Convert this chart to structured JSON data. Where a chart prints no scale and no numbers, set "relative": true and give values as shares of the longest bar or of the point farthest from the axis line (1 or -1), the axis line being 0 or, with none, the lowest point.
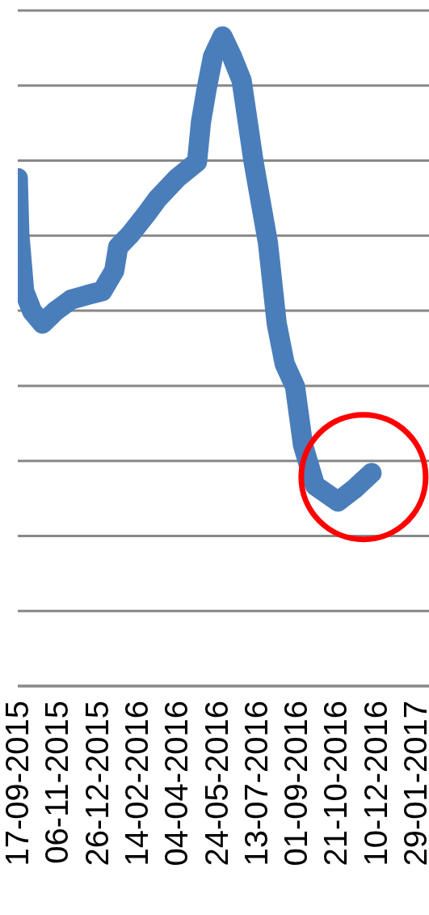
{
  "chart_data": {
    "type": "line",
    "relative": true,
    "grid": "y",
    "x": [
      "2015-09-17",
      "2015-09-19",
      "2015-09-25",
      "2015-10-05",
      "2015-10-18",
      "2015-11-03",
      "2015-11-23",
      "2015-12-13",
      "2016-01-01",
      "2016-01-16",
      "2016-01-21",
      "2016-02-05",
      "2016-02-25",
      "2016-03-11",
      "2016-04-04",
      "2016-04-29",
      "2016-05-04",
      "2016-05-11",
      "2016-05-19",
      "2016-05-31",
      "2016-06-12",
      "2016-06-24",
      "2016-07-09",
      "2016-07-27",
      "2016-08-07",
      "2016-08-17",
      "2016-08-30",
      "2016-09-09",
      "2016-09-24",
      "2016-10-23",
      "2016-11-12",
      "2016-12-04"
    ],
    "xlim": [
      "2015-09-17",
      "2017-02-05"
    ],
    "xticks": [
      {
        "value": "2015-09-17",
        "label": "17-09-2015"
      },
      {
        "value": "2015-11-06",
        "label": "06-11-2015"
      },
      {
        "value": "2015-12-26",
        "label": "26-12-2015"
      },
      {
        "value": "2016-02-14",
        "label": "14-02-2016"
      },
      {
        "value": "2016-04-04",
        "label": "04-04-2016"
      },
      {
        "value": "2016-05-24",
        "label": "24-05-2016"
      },
      {
        "value": "2016-07-13",
        "label": "13-07-2016"
      },
      {
        "value": "2016-09-01",
        "label": "01-09-2016"
      },
      {
        "value": "2016-10-21",
        "label": "21-10-2016"
      },
      {
        "value": "2016-12-10",
        "label": "10-12-2016"
      },
      {
        "value": "2017-01-29",
        "label": "29-01-2017"
      }
    ],
    "series": [
      {
        "color": "#4a7ebb",
        "values": [
          0.782,
          0.695,
          0.608,
          0.577,
          0.558,
          0.577,
          0.595,
          0.602,
          0.608,
          0.639,
          0.676,
          0.695,
          0.726,
          0.751,
          0.782,
          0.807,
          0.869,
          0.919,
          0.969,
          1,
          0.969,
          0.932,
          0.807,
          0.682,
          0.558,
          0.496,
          0.461,
          0.371,
          0.309,
          0.284,
          0.303,
          0.328
        ]
      }
    ]
  }
}
